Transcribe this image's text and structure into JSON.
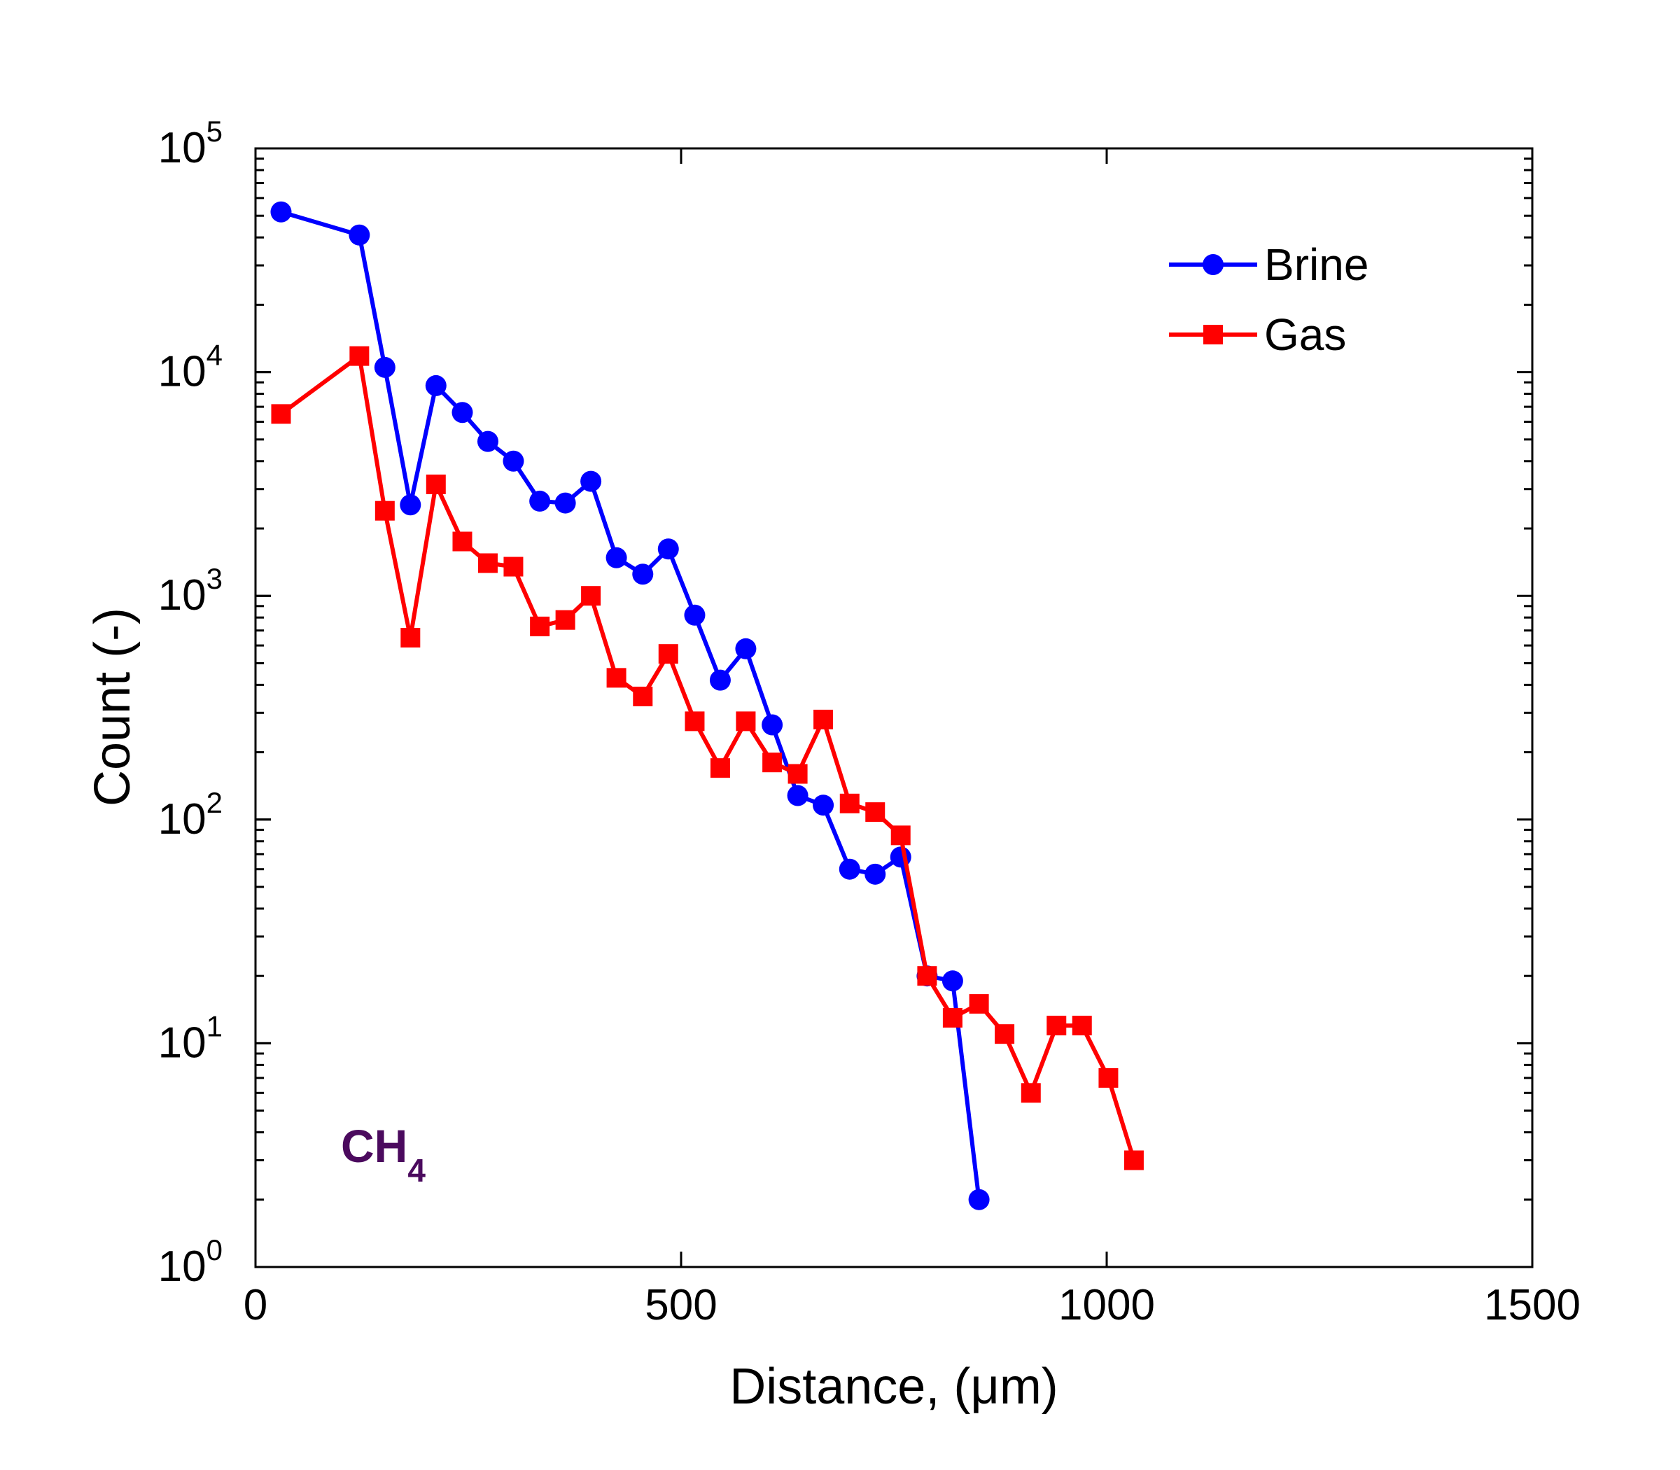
{
  "chart_data": {
    "type": "line",
    "title": "",
    "xlabel": "Distance, (μm)",
    "ylabel": "Count (-)",
    "xlim": [
      0,
      1500
    ],
    "ylim": [
      1,
      100000
    ],
    "yscale": "log",
    "grid": false,
    "legend_position": "top-right",
    "x_ticks": [
      0,
      500,
      1000,
      1500
    ],
    "y_ticks": [
      {
        "base": "10",
        "exponent": "0",
        "value": 1
      },
      {
        "base": "10",
        "exponent": "1",
        "value": 10
      },
      {
        "base": "10",
        "exponent": "2",
        "value": 100
      },
      {
        "base": "10",
        "exponent": "3",
        "value": 1000
      },
      {
        "base": "10",
        "exponent": "4",
        "value": 10000
      },
      {
        "base": "10",
        "exponent": "5",
        "value": 100000
      }
    ],
    "annotation": {
      "text": "CH",
      "subscript": "4",
      "color": "#4b0a5e"
    },
    "series": [
      {
        "name": "Brine",
        "color": "#0000ff",
        "marker": "circle",
        "x": [
          30,
          122,
          152,
          182,
          212,
          243,
          273,
          303,
          334,
          364,
          394,
          424,
          455,
          485,
          516,
          546,
          576,
          607,
          637,
          667,
          698,
          728,
          758,
          789,
          819,
          850
        ],
        "y": [
          52000,
          41000,
          10500,
          2550,
          8700,
          6600,
          4900,
          4000,
          2650,
          2600,
          3250,
          1480,
          1250,
          1620,
          820,
          420,
          580,
          265,
          128,
          116,
          60,
          57,
          68,
          20,
          19,
          2
        ]
      },
      {
        "name": "Gas",
        "color": "#ff0000",
        "marker": "square",
        "x": [
          30,
          122,
          152,
          182,
          212,
          243,
          273,
          303,
          334,
          364,
          394,
          424,
          455,
          485,
          516,
          546,
          576,
          607,
          637,
          667,
          698,
          728,
          758,
          789,
          819,
          850,
          880,
          911,
          941,
          971,
          1002,
          1032
        ],
        "y": [
          6500,
          11800,
          2400,
          650,
          3150,
          1750,
          1400,
          1350,
          730,
          780,
          1000,
          430,
          355,
          550,
          275,
          170,
          275,
          180,
          160,
          280,
          118,
          108,
          85,
          20,
          13,
          15,
          11,
          6,
          12,
          12,
          7,
          3
        ]
      }
    ]
  }
}
